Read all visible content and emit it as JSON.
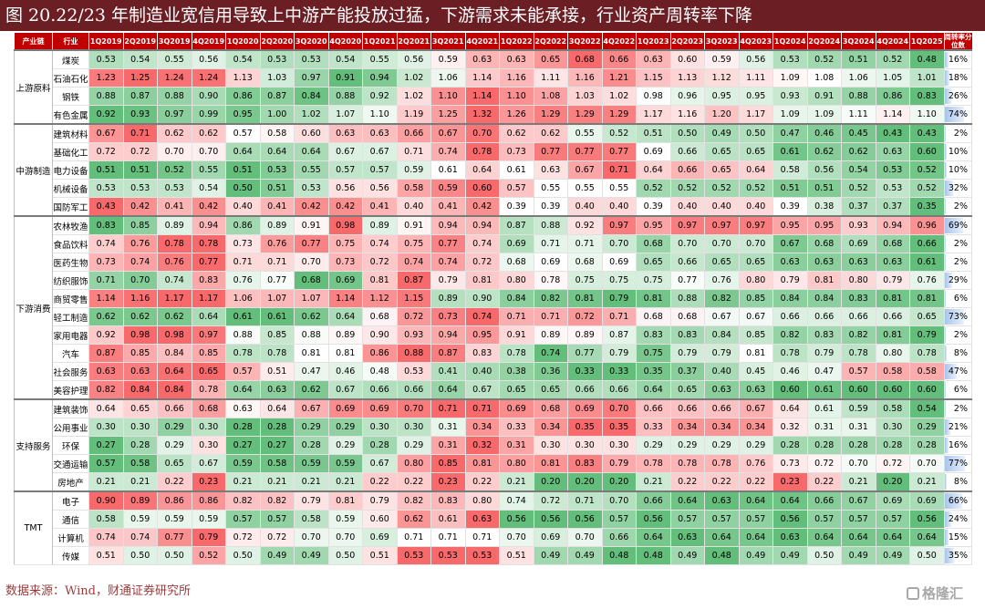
{
  "title": "图 20.22/23 年制造业宽信用导致上中游产能投放过猛，下游需求未能承接，行业资产周转率下降",
  "source": "数据来源：Wind，财通证券研究所",
  "watermark": "格隆汇",
  "colors": {
    "title_bg": "#6b1f24",
    "header_bg": "#c00000",
    "high": "#f8696b",
    "low": "#63be7b",
    "mid": "#ffffff",
    "bar": "#a9c4ec"
  },
  "chart_data": {
    "type": "heatmap",
    "title": "",
    "header": {
      "chain": "产业链",
      "industry": "行业",
      "turnover": "周转率分位数"
    },
    "quarters": [
      "1Q2019",
      "2Q2019",
      "3Q2019",
      "4Q2019",
      "1Q2020",
      "2Q2020",
      "3Q2020",
      "4Q2020",
      "1Q2021",
      "2Q2021",
      "3Q2021",
      "4Q2021",
      "1Q2022",
      "2Q2022",
      "3Q2022",
      "4Q2022",
      "1Q2023",
      "2Q2023",
      "3Q2023",
      "4Q2023",
      "1Q2024",
      "2Q2024",
      "3Q2024",
      "4Q2024",
      "1Q2025"
    ],
    "groups": [
      {
        "chain": "上游原料",
        "rows": [
          {
            "industry": "煤炭",
            "values": [
              0.53,
              0.54,
              0.55,
              0.56,
              0.54,
              0.53,
              0.53,
              0.54,
              0.55,
              0.56,
              0.59,
              0.63,
              0.63,
              0.65,
              0.68,
              0.66,
              0.63,
              0.6,
              0.59,
              0.56,
              0.53,
              0.52,
              0.51,
              0.52,
              0.48
            ],
            "turnover": "16%"
          },
          {
            "industry": "石油石化",
            "values": [
              1.23,
              1.25,
              1.24,
              1.24,
              1.13,
              1.03,
              0.97,
              0.91,
              0.94,
              1.02,
              1.06,
              1.14,
              1.16,
              1.11,
              1.16,
              1.21,
              1.15,
              1.13,
              1.12,
              1.11,
              1.09,
              1.08,
              1.06,
              1.05,
              1.01
            ],
            "turnover": "18%"
          },
          {
            "industry": "钢铁",
            "values": [
              0.88,
              0.87,
              0.88,
              0.9,
              0.86,
              0.87,
              0.84,
              0.88,
              0.92,
              1.02,
              1.1,
              1.14,
              1.1,
              1.08,
              1.03,
              1.02,
              0.98,
              0.96,
              0.95,
              0.95,
              0.93,
              0.91,
              0.88,
              0.86,
              0.83
            ],
            "turnover": "26%"
          },
          {
            "industry": "有色金属",
            "values": [
              0.92,
              0.93,
              0.97,
              0.99,
              0.95,
              1.0,
              1.02,
              1.07,
              1.1,
              1.19,
              1.25,
              1.32,
              1.26,
              1.29,
              1.29,
              1.29,
              1.17,
              1.16,
              1.2,
              1.17,
              1.09,
              1.09,
              1.11,
              1.14,
              1.1
            ],
            "turnover": "74%"
          }
        ]
      },
      {
        "chain": "中游制造",
        "rows": [
          {
            "industry": "建筑材料",
            "values": [
              0.67,
              0.71,
              0.62,
              0.62,
              0.57,
              0.58,
              0.6,
              0.63,
              0.63,
              0.66,
              0.67,
              0.7,
              0.62,
              0.62,
              0.55,
              0.52,
              0.51,
              0.5,
              0.49,
              0.5,
              0.47,
              0.46,
              0.45,
              0.43,
              0.43
            ],
            "turnover": "2%"
          },
          {
            "industry": "基础化工",
            "values": [
              0.72,
              0.72,
              0.7,
              0.7,
              0.64,
              0.64,
              0.64,
              0.67,
              0.67,
              0.71,
              0.74,
              0.78,
              0.73,
              0.77,
              0.77,
              0.77,
              0.69,
              0.66,
              0.65,
              0.65,
              0.61,
              0.62,
              0.62,
              0.63,
              0.6
            ],
            "turnover": "10%"
          },
          {
            "industry": "电力设备",
            "values": [
              0.51,
              0.51,
              0.52,
              0.55,
              0.51,
              0.53,
              0.55,
              0.57,
              0.57,
              0.59,
              0.61,
              0.64,
              0.61,
              0.63,
              0.67,
              0.71,
              0.64,
              0.66,
              0.65,
              0.64,
              0.58,
              0.56,
              0.54,
              0.53,
              0.52
            ],
            "turnover": "10%"
          },
          {
            "industry": "机械设备",
            "values": [
              0.53,
              0.53,
              0.53,
              0.54,
              0.5,
              0.51,
              0.53,
              0.56,
              0.56,
              0.58,
              0.59,
              0.6,
              0.57,
              0.55,
              0.55,
              0.55,
              0.52,
              0.52,
              0.52,
              0.52,
              0.51,
              0.51,
              0.52,
              0.53,
              0.52
            ],
            "turnover": "32%"
          },
          {
            "industry": "国防军工",
            "values": [
              0.43,
              0.42,
              0.41,
              0.42,
              0.4,
              0.41,
              0.42,
              0.42,
              0.41,
              0.4,
              0.41,
              0.42,
              0.39,
              0.39,
              0.4,
              0.4,
              0.39,
              0.4,
              0.4,
              0.4,
              0.39,
              0.38,
              0.37,
              0.37,
              0.35
            ],
            "turnover": "2%"
          }
        ]
      },
      {
        "chain": "下游消费",
        "rows": [
          {
            "industry": "农林牧渔",
            "values": [
              0.83,
              0.85,
              0.89,
              0.94,
              0.86,
              0.89,
              0.91,
              0.98,
              0.89,
              0.91,
              0.94,
              0.94,
              0.87,
              0.88,
              0.92,
              0.97,
              0.95,
              0.97,
              0.97,
              0.97,
              0.95,
              0.95,
              0.93,
              0.94,
              0.96
            ],
            "turnover": "69%"
          },
          {
            "industry": "食品饮料",
            "values": [
              0.74,
              0.76,
              0.78,
              0.78,
              0.73,
              0.76,
              0.77,
              0.75,
              0.74,
              0.75,
              0.77,
              0.74,
              0.69,
              0.71,
              0.71,
              0.7,
              0.68,
              0.7,
              0.7,
              0.7,
              0.67,
              0.68,
              0.69,
              0.68,
              0.66
            ],
            "turnover": "2%"
          },
          {
            "industry": "医药生物",
            "values": [
              0.73,
              0.74,
              0.76,
              0.77,
              0.71,
              0.71,
              0.7,
              0.73,
              0.72,
              0.74,
              0.74,
              0.72,
              0.68,
              0.69,
              0.68,
              0.69,
              0.65,
              0.66,
              0.65,
              0.65,
              0.63,
              0.63,
              0.63,
              0.63,
              0.61
            ],
            "turnover": "2%"
          },
          {
            "industry": "纺织服饰",
            "values": [
              0.71,
              0.7,
              0.74,
              0.83,
              0.76,
              0.77,
              0.68,
              0.69,
              0.81,
              0.87,
              0.79,
              0.81,
              0.8,
              0.78,
              0.75,
              0.75,
              0.75,
              0.77,
              0.76,
              0.8,
              0.79,
              0.81,
              0.8,
              0.79,
              0.76
            ],
            "turnover": "29%"
          },
          {
            "industry": "商贸零售",
            "values": [
              1.14,
              1.16,
              1.17,
              1.17,
              1.06,
              1.07,
              1.07,
              1.14,
              1.12,
              1.15,
              0.89,
              0.9,
              0.84,
              0.82,
              0.81,
              0.79,
              0.81,
              0.88,
              0.82,
              0.85,
              0.84,
              0.84,
              0.83,
              0.81,
              0.81
            ],
            "turnover": "6%"
          },
          {
            "industry": "轻工制造",
            "values": [
              0.62,
              0.62,
              0.62,
              0.64,
              0.61,
              0.61,
              0.62,
              0.64,
              0.68,
              0.72,
              0.73,
              0.74,
              0.71,
              0.71,
              0.72,
              0.71,
              0.68,
              0.68,
              0.67,
              0.67,
              0.66,
              0.66,
              0.66,
              0.66,
              0.65
            ],
            "turnover": "73%"
          },
          {
            "industry": "家用电器",
            "values": [
              0.92,
              0.98,
              0.98,
              0.97,
              0.88,
              0.85,
              0.88,
              0.89,
              0.9,
              0.93,
              0.94,
              0.95,
              0.91,
              0.89,
              0.89,
              0.87,
              0.83,
              0.83,
              0.84,
              0.85,
              0.82,
              0.83,
              0.82,
              0.81,
              0.79
            ],
            "turnover": "2%"
          },
          {
            "industry": "汽车",
            "values": [
              0.87,
              0.85,
              0.84,
              0.85,
              0.78,
              0.78,
              0.81,
              0.81,
              0.86,
              0.88,
              0.87,
              0.83,
              0.78,
              0.74,
              0.77,
              0.79,
              0.75,
              0.79,
              0.79,
              0.81,
              0.78,
              0.79,
              0.78,
              0.8,
              0.78
            ],
            "turnover": "8%"
          },
          {
            "industry": "社会服务",
            "values": [
              0.63,
              0.63,
              0.64,
              0.65,
              0.57,
              0.51,
              0.47,
              0.46,
              0.48,
              0.53,
              0.41,
              0.4,
              0.38,
              0.36,
              0.33,
              0.33,
              0.35,
              0.37,
              0.4,
              0.45,
              0.46,
              0.47,
              0.57,
              0.58,
              0.58
            ],
            "turnover": "47%"
          },
          {
            "industry": "美容护理",
            "values": [
              0.82,
              0.84,
              0.84,
              0.78,
              0.64,
              0.63,
              0.62,
              0.67,
              0.66,
              0.66,
              0.64,
              0.67,
              0.65,
              0.65,
              0.66,
              0.66,
              0.64,
              0.65,
              0.63,
              0.63,
              0.6,
              0.61,
              0.6,
              0.6,
              0.6
            ],
            "turnover": "6%"
          }
        ]
      },
      {
        "chain": "支持服务",
        "rows": [
          {
            "industry": "建筑装饰",
            "values": [
              0.64,
              0.65,
              0.66,
              0.68,
              0.63,
              0.64,
              0.67,
              0.69,
              0.69,
              0.7,
              0.71,
              0.71,
              0.69,
              0.68,
              0.69,
              0.7,
              0.66,
              0.66,
              0.66,
              0.67,
              0.64,
              0.61,
              0.59,
              0.58,
              0.54
            ],
            "turnover": "2%"
          },
          {
            "industry": "公用事业",
            "values": [
              0.3,
              0.3,
              0.29,
              0.3,
              0.28,
              0.28,
              0.29,
              0.29,
              0.3,
              0.3,
              0.31,
              0.34,
              0.33,
              0.34,
              0.35,
              0.35,
              0.33,
              0.34,
              0.34,
              0.34,
              0.32,
              0.31,
              0.31,
              0.3,
              0.29
            ],
            "turnover": "21%"
          },
          {
            "industry": "环保",
            "values": [
              0.27,
              0.28,
              0.29,
              0.3,
              0.27,
              0.27,
              0.28,
              0.29,
              0.28,
              0.29,
              0.31,
              0.32,
              0.31,
              0.3,
              0.3,
              0.3,
              0.29,
              0.29,
              0.29,
              0.29,
              0.28,
              0.28,
              0.28,
              0.28,
              0.28
            ],
            "turnover": "16%"
          },
          {
            "industry": "交通运输",
            "values": [
              0.57,
              0.58,
              0.65,
              0.67,
              0.59,
              0.58,
              0.59,
              0.59,
              0.67,
              0.8,
              0.85,
              0.81,
              0.8,
              0.81,
              0.83,
              0.79,
              0.78,
              0.78,
              0.78,
              0.76,
              0.73,
              0.72,
              0.7,
              0.72,
              0.7
            ],
            "turnover": "77%"
          },
          {
            "industry": "房地产",
            "values": [
              0.21,
              0.21,
              0.22,
              0.23,
              0.21,
              0.21,
              0.21,
              0.21,
              0.22,
              0.22,
              0.23,
              0.22,
              0.21,
              0.2,
              0.2,
              0.2,
              0.21,
              0.22,
              0.22,
              0.22,
              0.23,
              0.22,
              0.21,
              0.2,
              0.21
            ],
            "turnover": "8%"
          }
        ]
      },
      {
        "chain": "TMT",
        "rows": [
          {
            "industry": "电子",
            "values": [
              0.9,
              0.89,
              0.86,
              0.86,
              0.82,
              0.82,
              0.79,
              0.81,
              0.79,
              0.82,
              0.83,
              0.8,
              0.74,
              0.72,
              0.71,
              0.7,
              0.66,
              0.64,
              0.63,
              0.64,
              0.64,
              0.66,
              0.67,
              0.69,
              0.69
            ],
            "turnover": "66%"
          },
          {
            "industry": "通信",
            "values": [
              0.58,
              0.59,
              0.59,
              0.59,
              0.57,
              0.57,
              0.58,
              0.59,
              0.6,
              0.62,
              0.61,
              0.63,
              0.56,
              0.56,
              0.56,
              0.57,
              0.56,
              0.57,
              0.57,
              0.57,
              0.56,
              0.57,
              0.57,
              0.57,
              0.56
            ],
            "turnover": "24%"
          },
          {
            "industry": "计算机",
            "values": [
              0.74,
              0.74,
              0.77,
              0.79,
              0.72,
              0.72,
              0.7,
              0.7,
              0.69,
              0.71,
              0.71,
              0.71,
              0.7,
              0.69,
              0.7,
              0.66,
              0.64,
              0.63,
              0.64,
              0.64,
              0.63,
              0.64,
              0.64,
              0.64,
              0.64
            ],
            "turnover": "15%"
          },
          {
            "industry": "传媒",
            "values": [
              0.51,
              0.5,
              0.5,
              0.52,
              0.5,
              0.49,
              0.49,
              0.5,
              0.51,
              0.53,
              0.53,
              0.53,
              0.51,
              0.49,
              0.49,
              0.48,
              0.48,
              0.49,
              0.48,
              0.49,
              0.49,
              0.5,
              0.49,
              0.49,
              0.5
            ],
            "turnover": "35%"
          }
        ]
      }
    ]
  }
}
